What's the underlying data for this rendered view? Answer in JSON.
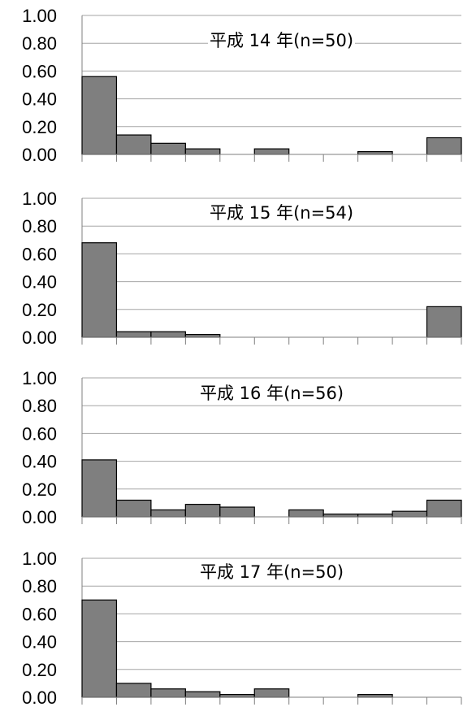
{
  "chart_data": [
    {
      "type": "bar",
      "title": "平成 14 年(n=50)",
      "values": [
        0.56,
        0.14,
        0.08,
        0.04,
        0.0,
        0.04,
        0.0,
        0.0,
        0.02,
        0.0,
        0.12
      ],
      "ylim": [
        0,
        1
      ],
      "yticks": [
        "0.00",
        "0.20",
        "0.40",
        "0.60",
        "0.80",
        "1.00"
      ],
      "grid": true
    },
    {
      "type": "bar",
      "title": "平成 15 年(n=54)",
      "values": [
        0.68,
        0.04,
        0.04,
        0.02,
        0.0,
        0.0,
        0.0,
        0.0,
        0.0,
        0.0,
        0.22
      ],
      "ylim": [
        0,
        1
      ],
      "yticks": [
        "0.00",
        "0.20",
        "0.40",
        "0.60",
        "0.80",
        "1.00"
      ],
      "grid": true
    },
    {
      "type": "bar",
      "title": "平成 16 年(n=56)",
      "values": [
        0.41,
        0.12,
        0.05,
        0.09,
        0.07,
        0.0,
        0.05,
        0.02,
        0.02,
        0.04,
        0.12
      ],
      "ylim": [
        0,
        1
      ],
      "yticks": [
        "0.00",
        "0.20",
        "0.40",
        "0.60",
        "0.80",
        "1.00"
      ],
      "grid": true
    },
    {
      "type": "bar",
      "title": "平成 17 年(n=50)",
      "values": [
        0.7,
        0.1,
        0.06,
        0.04,
        0.02,
        0.06,
        0.0,
        0.0,
        0.02,
        0.0,
        0.0
      ],
      "ylim": [
        0,
        1
      ],
      "yticks": [
        "0.00",
        "0.20",
        "0.40",
        "0.60",
        "0.80",
        "1.00"
      ],
      "grid": true
    }
  ],
  "colors": {
    "bar_fill": "#7f7f7f",
    "bar_stroke": "#000000",
    "grid": "#a6a6a6",
    "axis": "#7f7f7f"
  }
}
